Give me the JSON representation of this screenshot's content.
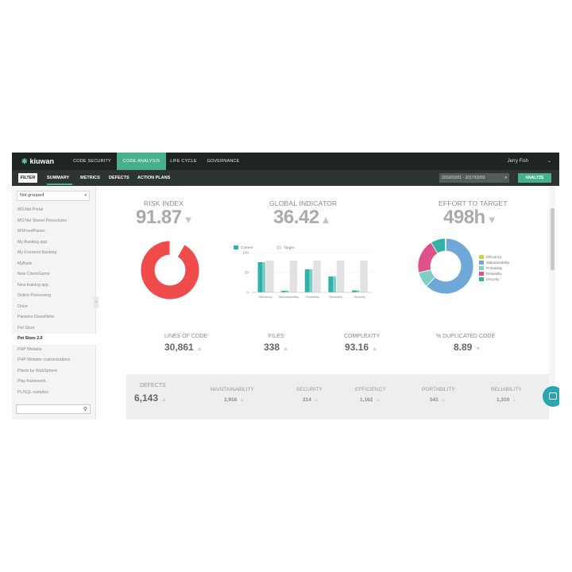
{
  "app": {
    "logo": "kiuwan"
  },
  "topnav": {
    "items": [
      "CODE SECURITY",
      "CODE ANALYSIS",
      "LIFE CYCLE",
      "GOVERNANCE"
    ],
    "user": "Jerry Fish"
  },
  "subnav": {
    "filter": "FILTER",
    "tabs": [
      "SUMMARY",
      "METRICS",
      "DEFECTS",
      "ACTION PLANS"
    ],
    "date_range": "2016/02/01 - 2017/03/03",
    "analyze": "ANALYZE"
  },
  "sidebar": {
    "group_select": "Not grouped",
    "projects": [
      "MS.Net Portal",
      "MS.Net Stored Procedures",
      "MSFeedParser",
      "My Banking app",
      "My Frontend Banking",
      "MyBatis",
      "New ChessGame",
      "New training app",
      "Online Processing",
      "Orion",
      "Paradox Glassfiishe",
      "Pet Store",
      "Pet Store 2.0",
      "PHP Website",
      "PHP Website customizations",
      "Plants by WebSphere",
      "Play framework",
      "PL/SQL samples"
    ],
    "active_project": "Pet Store 2.0",
    "search_placeholder": ""
  },
  "kpis": {
    "risk_index": {
      "title": "RISK INDEX",
      "value": "91.87"
    },
    "global_indicator": {
      "title": "GLOBAL INDICATOR",
      "value": "36.42"
    },
    "effort_to_target": {
      "title": "EFFORT TO TARGET",
      "value": "498h"
    }
  },
  "metrics": {
    "lines_of_code": {
      "title": "LINES OF CODE",
      "value": "30,861"
    },
    "files": {
      "title": "FILES",
      "value": "338"
    },
    "complexity": {
      "title": "COMPLEXITY",
      "value": "93.16"
    },
    "duplicated": {
      "title": "% DUPLICATED CODE",
      "value": "8.89"
    }
  },
  "defects": {
    "total": {
      "title": "DEFECTS",
      "value": "6,143"
    },
    "items": [
      {
        "title": "MAINTAINABILITY",
        "value": "2,916"
      },
      {
        "title": "SECURITY",
        "value": "214"
      },
      {
        "title": "EFFICIENCY",
        "value": "1,162"
      },
      {
        "title": "PORTABILITY",
        "value": "541"
      },
      {
        "title": "RELIABILITY",
        "value": "1,310"
      }
    ]
  },
  "colors": {
    "accent": "#49b08e",
    "risk_red": "#f04b4b",
    "teal": "#2fb3a6",
    "light_teal": "#7fcfc8",
    "blue": "#6fa7d8",
    "pink": "#e0508a",
    "lime": "#c9d43a",
    "gray_bar": "#e2e2e2"
  },
  "chart_data": [
    {
      "type": "pie",
      "title": "RISK INDEX",
      "slices": [
        {
          "label": "risk",
          "value": 91.87
        },
        {
          "label": "remainder",
          "value": 8.13
        }
      ]
    },
    {
      "type": "bar",
      "title": "GLOBAL INDICATOR",
      "categories": [
        "Efficiency",
        "Maintainability",
        "Portability",
        "Reliability",
        "Security"
      ],
      "series": [
        {
          "name": "Current",
          "values": [
            76,
            4,
            58,
            40,
            5
          ]
        },
        {
          "name": "Target",
          "values": [
            80,
            80,
            80,
            80,
            80
          ]
        }
      ],
      "ylim": [
        0,
        100
      ],
      "yticks": [
        "100",
        "50",
        "0"
      ],
      "legend": "top"
    },
    {
      "type": "pie",
      "title": "EFFORT TO TARGET",
      "slices": [
        {
          "label": "Efficiency",
          "value": 0.5
        },
        {
          "label": "Maintainability",
          "value": 62
        },
        {
          "label": "Portability",
          "value": 9
        },
        {
          "label": "Reliability",
          "value": 20
        },
        {
          "label": "Security",
          "value": 8.5
        }
      ],
      "legend": "right"
    }
  ]
}
